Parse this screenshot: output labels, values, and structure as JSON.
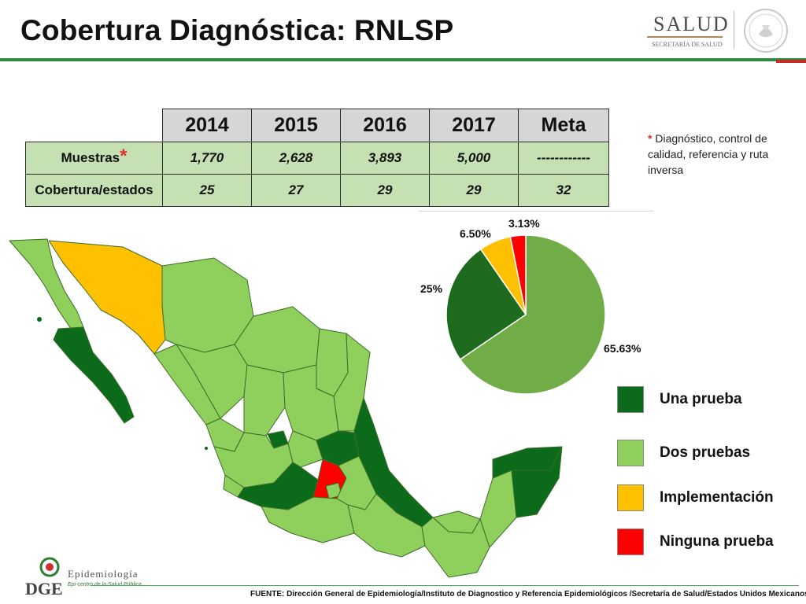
{
  "slide": {
    "title": "Cobertura Diagnóstica: RNLSP",
    "footer": "FUENTE: Dirección General de Epidemiología/Instituto de Diagnostico y Referencia Epidemiológicos /Secretaría de Salud/Estados Unidos Mexicanos",
    "accent_color": "#2e8b3e"
  },
  "logos": {
    "salud_name": "SALUD",
    "salud_sub": "SECRETARÍA DE SALUD",
    "epi_name": "Epidemiología",
    "epi_tagline": "Epi-centro de la Salud Pública",
    "epi_mark": "DGE"
  },
  "table": {
    "headers": [
      "2014",
      "2015",
      "2016",
      "2017",
      "Meta"
    ],
    "rows": [
      {
        "label": "Muestras",
        "asterisk": "*",
        "values": [
          "1,770",
          "2,628",
          "3,893",
          "5,000",
          "------------"
        ]
      },
      {
        "label": "Cobertura/estados",
        "asterisk": "",
        "values": [
          "25",
          "27",
          "29",
          "29",
          "32"
        ]
      }
    ]
  },
  "note": {
    "star": "*",
    "text": " Diagnóstico, control de calidad, referencia y ruta inversa"
  },
  "legend": [
    {
      "label": "Una prueba",
      "color": "#0b6b1a"
    },
    {
      "label": "Dos pruebas",
      "color": "#8fcf5b"
    },
    {
      "label": "Implementación",
      "color": "#ffc000"
    },
    {
      "label": "Ninguna prueba",
      "color": "#ff0000"
    }
  ],
  "chart_data": {
    "type": "pie",
    "slices": [
      {
        "label": "65.63%",
        "category": "Dos pruebas",
        "value": 65.63,
        "color": "#70ad47"
      },
      {
        "label": "25%",
        "category": "Una prueba",
        "value": 25,
        "color": "#1e6b1e"
      },
      {
        "label": "6.50%",
        "category": "Implementación",
        "value": 6.5,
        "color": "#ffc000"
      },
      {
        "label": "3.13%",
        "category": "Ninguna prueba",
        "value": 3.13,
        "color": "#ff0000"
      }
    ]
  }
}
